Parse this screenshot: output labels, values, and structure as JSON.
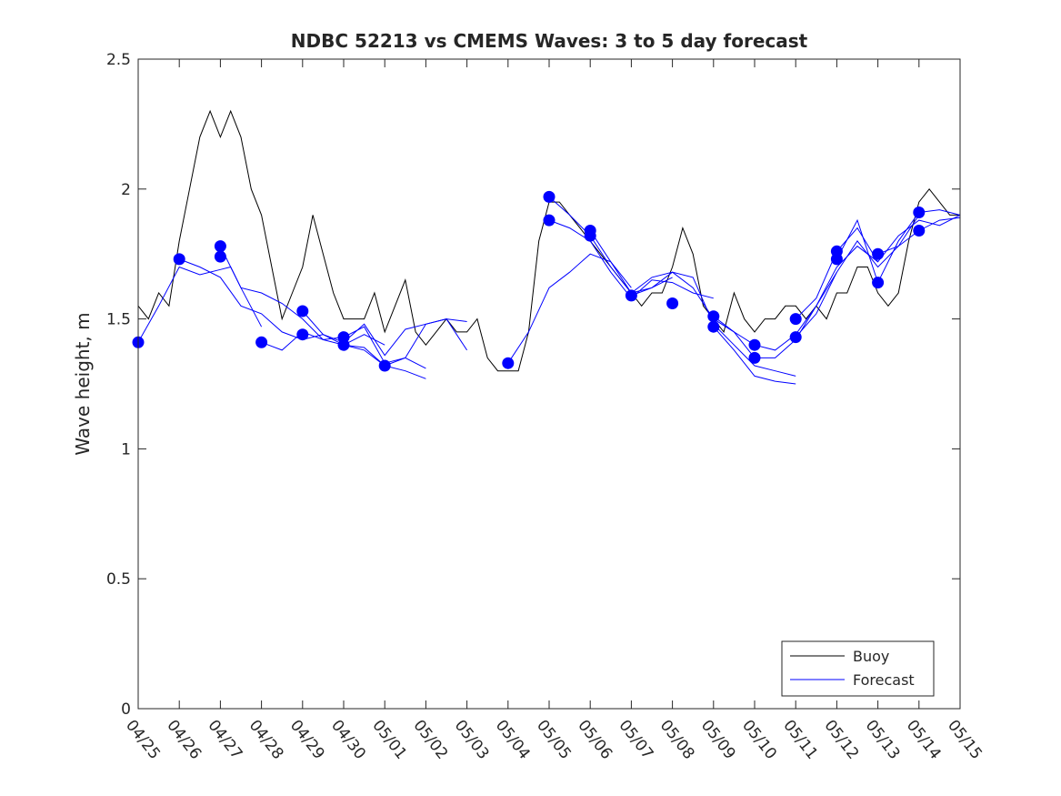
{
  "chart_data": {
    "type": "line",
    "title": "NDBC 52213 vs CMEMS Waves: 3 to 5 day forecast",
    "xlabel": "",
    "ylabel": "Wave height, m",
    "ylim": [
      0,
      2.5
    ],
    "yticks": [
      "0",
      "0.5",
      "1",
      "1.5",
      "2",
      "2.5"
    ],
    "xticks": [
      "04/25",
      "04/26",
      "04/27",
      "04/28",
      "04/29",
      "04/30",
      "05/01",
      "05/02",
      "05/03",
      "05/04",
      "05/05",
      "05/06",
      "05/07",
      "05/08",
      "05/09",
      "05/10",
      "05/11",
      "05/12",
      "05/13",
      "05/14",
      "05/15"
    ],
    "legend": {
      "position": "bottom-right",
      "entries": [
        "Buoy",
        "Forecast"
      ]
    },
    "colors": {
      "buoy": "#000000",
      "forecast": "#0000ff"
    },
    "series": [
      {
        "name": "Buoy",
        "x": [
          "04/25 00:00",
          "04/25 06:00",
          "04/25 12:00",
          "04/25 18:00",
          "04/26 00:00",
          "04/26 06:00",
          "04/26 12:00",
          "04/26 18:00",
          "04/27 00:00",
          "04/27 06:00",
          "04/27 12:00",
          "04/27 18:00",
          "04/28 00:00",
          "04/28 06:00",
          "04/28 12:00",
          "04/28 18:00",
          "04/29 00:00",
          "04/29 06:00",
          "04/29 12:00",
          "04/29 18:00",
          "04/30 00:00",
          "04/30 06:00",
          "04/30 12:00",
          "04/30 18:00",
          "05/01 00:00",
          "05/01 06:00",
          "05/01 12:00",
          "05/01 18:00",
          "05/02 00:00",
          "05/02 06:00",
          "05/02 12:00",
          "05/02 18:00",
          "05/03 00:00",
          "05/03 06:00",
          "05/03 12:00",
          "05/03 18:00",
          "05/04 00:00",
          "05/04 06:00",
          "05/04 12:00",
          "05/04 18:00",
          "05/05 00:00",
          "05/05 06:00",
          "05/05 12:00",
          "05/05 18:00",
          "05/06 00:00",
          "05/06 06:00",
          "05/06 12:00",
          "05/06 18:00",
          "05/07 00:00",
          "05/07 06:00",
          "05/07 12:00",
          "05/07 18:00",
          "05/08 00:00",
          "05/08 06:00",
          "05/08 12:00",
          "05/08 18:00",
          "05/09 00:00",
          "05/09 06:00",
          "05/09 12:00",
          "05/09 18:00",
          "05/10 00:00",
          "05/10 06:00",
          "05/10 12:00",
          "05/10 18:00",
          "05/11 00:00",
          "05/11 06:00",
          "05/11 12:00",
          "05/11 18:00",
          "05/12 00:00",
          "05/12 06:00",
          "05/12 12:00",
          "05/12 18:00",
          "05/13 00:00",
          "05/13 06:00",
          "05/13 12:00",
          "05/13 18:00",
          "05/14 00:00",
          "05/14 06:00",
          "05/14 12:00",
          "05/14 18:00",
          "05/15 00:00"
        ],
        "values": [
          1.55,
          1.5,
          1.6,
          1.55,
          1.8,
          2.0,
          2.2,
          2.3,
          2.2,
          2.3,
          2.2,
          2.0,
          1.9,
          1.7,
          1.5,
          1.6,
          1.7,
          1.9,
          1.75,
          1.6,
          1.5,
          1.5,
          1.5,
          1.6,
          1.45,
          1.55,
          1.65,
          1.45,
          1.4,
          1.45,
          1.5,
          1.45,
          1.45,
          1.5,
          1.35,
          1.3,
          1.3,
          1.3,
          1.45,
          1.8,
          1.95,
          1.95,
          1.9,
          1.85,
          1.8,
          1.75,
          1.7,
          1.65,
          1.6,
          1.55,
          1.6,
          1.6,
          1.7,
          1.85,
          1.75,
          1.55,
          1.5,
          1.45,
          1.6,
          1.5,
          1.45,
          1.5,
          1.5,
          1.55,
          1.55,
          1.5,
          1.55,
          1.5,
          1.6,
          1.6,
          1.7,
          1.7,
          1.6,
          1.55,
          1.6,
          1.8,
          1.95,
          2.0,
          1.95,
          1.9,
          1.9
        ]
      },
      {
        "name": "Forecast",
        "runs": [
          {
            "x": [
              "04/25 00:00",
              "04/25 12:00",
              "04/26 00:00",
              "04/26 12:00",
              "04/27 00:00",
              "04/27 06:00",
              "04/27 12:00",
              "04/28 00:00"
            ],
            "values": [
              1.41,
              1.55,
              1.7,
              1.67,
              1.69,
              1.7,
              1.62,
              1.47
            ]
          },
          {
            "x": [
              "04/26 00:00",
              "04/26 12:00",
              "04/27 00:00",
              "04/27 12:00",
              "04/28 00:00",
              "04/28 12:00",
              "04/29 00:00",
              "04/29 12:00",
              "04/30 00:00",
              "04/30 12:00",
              "05/01 00:00"
            ],
            "values": [
              1.73,
              1.7,
              1.66,
              1.55,
              1.52,
              1.45,
              1.42,
              1.44,
              1.4,
              1.39,
              1.32
            ]
          },
          {
            "x": [
              "04/27 00:00",
              "04/27 12:00",
              "04/28 00:00",
              "04/28 12:00",
              "04/29 00:00",
              "04/29 12:00",
              "04/30 00:00",
              "04/30 12:00",
              "05/01 00:00"
            ],
            "values": [
              1.78,
              1.62,
              1.6,
              1.56,
              1.5,
              1.42,
              1.4,
              1.44,
              1.4
            ]
          },
          {
            "x": [
              "04/28 00:00",
              "04/28 12:00",
              "04/29 00:00",
              "04/29 12:00",
              "04/30 00:00",
              "04/30 12:00",
              "05/01 00:00",
              "05/01 12:00",
              "05/02 00:00"
            ],
            "values": [
              1.41,
              1.38,
              1.45,
              1.42,
              1.43,
              1.47,
              1.33,
              1.35,
              1.31
            ]
          },
          {
            "x": [
              "04/29 00:00",
              "04/29 12:00",
              "04/30 00:00",
              "04/30 12:00",
              "05/01 00:00",
              "05/01 12:00",
              "05/02 00:00",
              "05/02 12:00",
              "05/03 00:00"
            ],
            "values": [
              1.53,
              1.44,
              1.41,
              1.48,
              1.36,
              1.46,
              1.48,
              1.5,
              1.38
            ]
          },
          {
            "x": [
              "04/30 00:00",
              "04/30 12:00",
              "05/01 00:00",
              "05/01 12:00",
              "05/02 00:00"
            ],
            "values": [
              1.4,
              1.38,
              1.32,
              1.3,
              1.27
            ]
          },
          {
            "x": [
              "05/01 00:00",
              "05/01 12:00",
              "05/02 00:00",
              "05/02 12:00",
              "05/03 00:00"
            ],
            "values": [
              1.32,
              1.35,
              1.48,
              1.5,
              1.49
            ]
          },
          {
            "x": [
              "05/04 00:00",
              "05/04 12:00",
              "05/05 00:00",
              "05/05 12:00",
              "05/06 00:00",
              "05/06 12:00",
              "05/07 00:00"
            ],
            "values": [
              1.33,
              1.45,
              1.62,
              1.68,
              1.75,
              1.72,
              1.62
            ]
          },
          {
            "x": [
              "05/05 00:00",
              "05/05 12:00",
              "05/06 00:00",
              "05/06 12:00",
              "05/07 00:00",
              "05/07 12:00",
              "05/08 00:00"
            ],
            "values": [
              1.97,
              1.9,
              1.82,
              1.7,
              1.6,
              1.62,
              1.66
            ]
          },
          {
            "x": [
              "05/05 00:00",
              "05/05 12:00",
              "05/06 00:00",
              "05/06 12:00",
              "05/07 00:00",
              "05/07 12:00",
              "05/08 00:00",
              "05/08 12:00",
              "05/09 00:00"
            ],
            "values": [
              1.88,
              1.85,
              1.8,
              1.68,
              1.58,
              1.65,
              1.64,
              1.6,
              1.58
            ]
          },
          {
            "x": [
              "05/06 00:00",
              "05/06 12:00",
              "05/07 00:00",
              "05/07 12:00",
              "05/08 00:00",
              "05/08 12:00",
              "05/09 00:00",
              "05/09 12:00",
              "05/10 00:00"
            ],
            "values": [
              1.84,
              1.72,
              1.6,
              1.66,
              1.68,
              1.62,
              1.5,
              1.45,
              1.35
            ]
          },
          {
            "x": [
              "05/07 00:00",
              "05/07 12:00",
              "05/08 00:00",
              "05/08 12:00",
              "05/09 00:00",
              "05/09 12:00",
              "05/10 00:00",
              "05/10 12:00",
              "05/11 00:00"
            ],
            "values": [
              1.59,
              1.62,
              1.68,
              1.66,
              1.48,
              1.4,
              1.32,
              1.3,
              1.28
            ]
          },
          {
            "x": [
              "05/09 00:00",
              "05/09 12:00",
              "05/10 00:00",
              "05/10 12:00",
              "05/11 00:00",
              "05/11 12:00",
              "05/12 00:00"
            ],
            "values": [
              1.51,
              1.45,
              1.4,
              1.38,
              1.44,
              1.55,
              1.68
            ]
          },
          {
            "x": [
              "05/09 00:00",
              "05/09 12:00",
              "05/10 00:00",
              "05/10 12:00",
              "05/11 00:00"
            ],
            "values": [
              1.47,
              1.38,
              1.28,
              1.26,
              1.25
            ]
          },
          {
            "x": [
              "05/10 00:00",
              "05/10 12:00",
              "05/11 00:00",
              "05/11 12:00",
              "05/12 00:00",
              "05/12 12:00",
              "05/13 00:00"
            ],
            "values": [
              1.35,
              1.35,
              1.42,
              1.55,
              1.7,
              1.78,
              1.72
            ]
          },
          {
            "x": [
              "05/11 00:00",
              "05/11 12:00",
              "05/12 00:00",
              "05/12 12:00",
              "05/13 00:00",
              "05/13 12:00",
              "05/14 00:00"
            ],
            "values": [
              1.43,
              1.52,
              1.68,
              1.8,
              1.7,
              1.78,
              1.9
            ]
          },
          {
            "x": [
              "05/11 00:00",
              "05/11 12:00",
              "05/12 00:00",
              "05/12 12:00",
              "05/13 00:00",
              "05/13 12:00",
              "05/14 00:00",
              "05/14 12:00",
              "05/15 00:00"
            ],
            "values": [
              1.5,
              1.58,
              1.76,
              1.85,
              1.72,
              1.82,
              1.88,
              1.86,
              1.9
            ]
          },
          {
            "x": [
              "05/12 00:00",
              "05/12 12:00",
              "05/13 00:00",
              "05/13 12:00",
              "05/14 00:00",
              "05/14 12:00",
              "05/15 00:00"
            ],
            "values": [
              1.73,
              1.88,
              1.64,
              1.8,
              1.91,
              1.92,
              1.9
            ]
          },
          {
            "x": [
              "05/13 00:00",
              "05/13 12:00",
              "05/14 00:00",
              "05/14 12:00",
              "05/15 00:00"
            ],
            "values": [
              1.75,
              1.78,
              1.84,
              1.88,
              1.89
            ]
          }
        ],
        "markers": {
          "x": [
            "04/25 00:00",
            "04/26 00:00",
            "04/27 00:00",
            "04/27 00:00",
            "04/28 00:00",
            "04/29 00:00",
            "04/29 00:00",
            "04/30 00:00",
            "04/30 00:00",
            "05/01 00:00",
            "05/04 00:00",
            "05/05 00:00",
            "05/05 00:00",
            "05/06 00:00",
            "05/06 00:00",
            "05/07 00:00",
            "05/08 00:00",
            "05/09 00:00",
            "05/09 00:00",
            "05/10 00:00",
            "05/10 00:00",
            "05/11 00:00",
            "05/11 00:00",
            "05/12 00:00",
            "05/12 00:00",
            "05/13 00:00",
            "05/13 00:00",
            "05/14 00:00",
            "05/14 00:00"
          ],
          "values": [
            1.41,
            1.73,
            1.78,
            1.74,
            1.41,
            1.53,
            1.44,
            1.43,
            1.4,
            1.32,
            1.33,
            1.97,
            1.88,
            1.84,
            1.82,
            1.59,
            1.56,
            1.51,
            1.47,
            1.4,
            1.35,
            1.5,
            1.43,
            1.76,
            1.73,
            1.75,
            1.64,
            1.91,
            1.84
          ]
        }
      }
    ]
  }
}
